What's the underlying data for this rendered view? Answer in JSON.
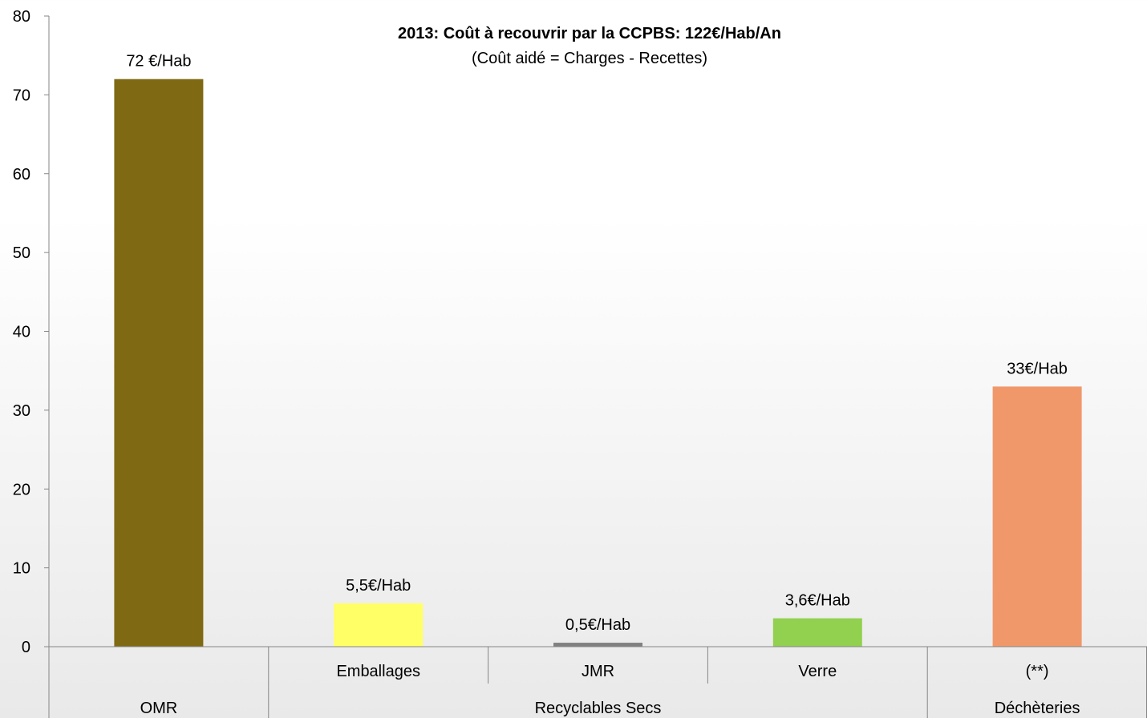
{
  "chart_data": {
    "type": "bar",
    "title": "2013: Coût à recouvrir par la CCPBS: 122€/Hab/An",
    "subtitle": "(Coût aidé = Charges - Recettes)",
    "ylim": [
      0,
      80
    ],
    "yticks": [
      0,
      10,
      20,
      30,
      40,
      50,
      60,
      70,
      80
    ],
    "grid": false,
    "categories": [
      "",
      "Emballages",
      "JMR",
      "Verre",
      "(**)"
    ],
    "groups": [
      "OMR",
      "Recyclables Secs",
      "Recyclables Secs",
      "Recyclables Secs",
      "Déchèteries"
    ],
    "values": [
      72,
      5.5,
      0.5,
      3.6,
      33
    ],
    "data_labels": [
      "72 €/Hab",
      "5,5€/Hab",
      "0,5€/Hab",
      "3,6€/Hab",
      "33€/Hab"
    ],
    "colors": [
      "#7f6a13",
      "#ffff66",
      "#808080",
      "#92d050",
      "#f0986a"
    ]
  }
}
